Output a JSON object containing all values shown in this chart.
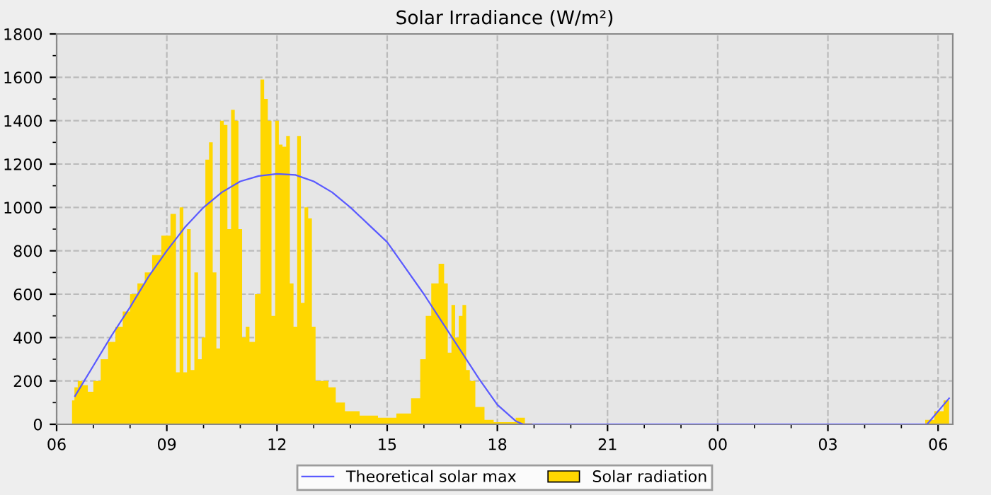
{
  "chart_data": {
    "type": "area",
    "title": "Solar Irradiance (W/m²)",
    "xlim": [
      6,
      30.4
    ],
    "ylim": [
      0,
      1800
    ],
    "xticks": [
      {
        "value": 6,
        "label": "06"
      },
      {
        "value": 7,
        "label": null
      },
      {
        "value": 8,
        "label": null
      },
      {
        "value": 9,
        "label": "09"
      },
      {
        "value": 10,
        "label": null
      },
      {
        "value": 11,
        "label": null
      },
      {
        "value": 12,
        "label": "12"
      },
      {
        "value": 13,
        "label": null
      },
      {
        "value": 14,
        "label": null
      },
      {
        "value": 15,
        "label": "15"
      },
      {
        "value": 16,
        "label": null
      },
      {
        "value": 17,
        "label": null
      },
      {
        "value": 18,
        "label": "18"
      },
      {
        "value": 19,
        "label": null
      },
      {
        "value": 20,
        "label": null
      },
      {
        "value": 21,
        "label": "21"
      },
      {
        "value": 22,
        "label": null
      },
      {
        "value": 23,
        "label": null
      },
      {
        "value": 24,
        "label": "00"
      },
      {
        "value": 25,
        "label": null
      },
      {
        "value": 26,
        "label": null
      },
      {
        "value": 27,
        "label": "03"
      },
      {
        "value": 28,
        "label": null
      },
      {
        "value": 29,
        "label": null
      },
      {
        "value": 30,
        "label": "06"
      }
    ],
    "yticks": [
      0,
      {
        "value": 100,
        "label": null
      },
      200,
      {
        "value": 300,
        "label": null
      },
      400,
      {
        "value": 500,
        "label": null
      },
      600,
      {
        "value": 700,
        "label": null
      },
      800,
      {
        "value": 900,
        "label": null
      },
      1000,
      {
        "value": 1100,
        "label": null
      },
      1200,
      {
        "value": 1300,
        "label": null
      },
      1400,
      {
        "value": 1500,
        "label": null
      },
      1600,
      {
        "value": 1700,
        "label": null
      },
      1800
    ],
    "grid": true,
    "legend": "bottom",
    "series": [
      {
        "name": "Solar radiation",
        "color": "#ffd700",
        "x": [
          6.42,
          6.55,
          6.6,
          6.8,
          6.9,
          7.1,
          7.3,
          7.5,
          7.7,
          7.9,
          8.1,
          8.3,
          8.5,
          8.7,
          9.0,
          9.2,
          9.3,
          9.4,
          9.5,
          9.6,
          9.7,
          9.8,
          9.9,
          10.0,
          10.1,
          10.2,
          10.3,
          10.4,
          10.5,
          10.6,
          10.7,
          10.8,
          10.9,
          11.0,
          11.1,
          11.2,
          11.3,
          11.5,
          11.6,
          11.7,
          11.8,
          11.9,
          12.0,
          12.1,
          12.2,
          12.3,
          12.4,
          12.5,
          12.6,
          12.7,
          12.8,
          12.9,
          13.0,
          13.1,
          13.3,
          13.5,
          13.7,
          14.0,
          14.5,
          15.0,
          15.5,
          15.8,
          16.0,
          16.1,
          16.3,
          16.5,
          16.6,
          16.7,
          16.8,
          16.9,
          17.0,
          17.1,
          17.2,
          17.3,
          17.5,
          17.8,
          18.0,
          18.4,
          18.6,
          18.9,
          19.0,
          29.5,
          29.8,
          30.0,
          30.3
        ],
        "values": [
          110,
          170,
          200,
          180,
          150,
          200,
          300,
          380,
          450,
          520,
          600,
          650,
          700,
          780,
          870,
          970,
          240,
          1000,
          240,
          900,
          250,
          700,
          300,
          400,
          1220,
          1300,
          700,
          350,
          1400,
          1380,
          900,
          1450,
          1400,
          900,
          400,
          450,
          380,
          600,
          1590,
          1500,
          1400,
          500,
          1400,
          1290,
          1280,
          1330,
          650,
          450,
          1330,
          560,
          1000,
          950,
          450,
          200,
          200,
          170,
          100,
          60,
          40,
          30,
          50,
          120,
          300,
          500,
          650,
          740,
          650,
          330,
          550,
          400,
          500,
          550,
          250,
          200,
          80,
          20,
          10,
          10,
          30,
          5,
          0,
          0,
          20,
          60,
          110
        ]
      },
      {
        "name": "Theoretical solar max",
        "type": "line",
        "color": "#5a5aff",
        "line_style": "solid",
        "x": [
          6.5,
          7,
          7.5,
          8,
          8.5,
          9,
          9.5,
          10,
          10.5,
          11,
          11.5,
          12,
          12.5,
          13,
          13.5,
          14,
          14.5,
          15,
          15.5,
          16,
          16.5,
          17,
          17.5,
          18,
          18.5,
          18.7,
          29.7,
          30,
          30.3
        ],
        "values": [
          130,
          270,
          410,
          540,
          680,
          800,
          910,
          1000,
          1070,
          1120,
          1145,
          1155,
          1150,
          1120,
          1070,
          1000,
          920,
          840,
          720,
          600,
          470,
          340,
          210,
          90,
          15,
          0,
          0,
          60,
          120
        ]
      }
    ]
  }
}
